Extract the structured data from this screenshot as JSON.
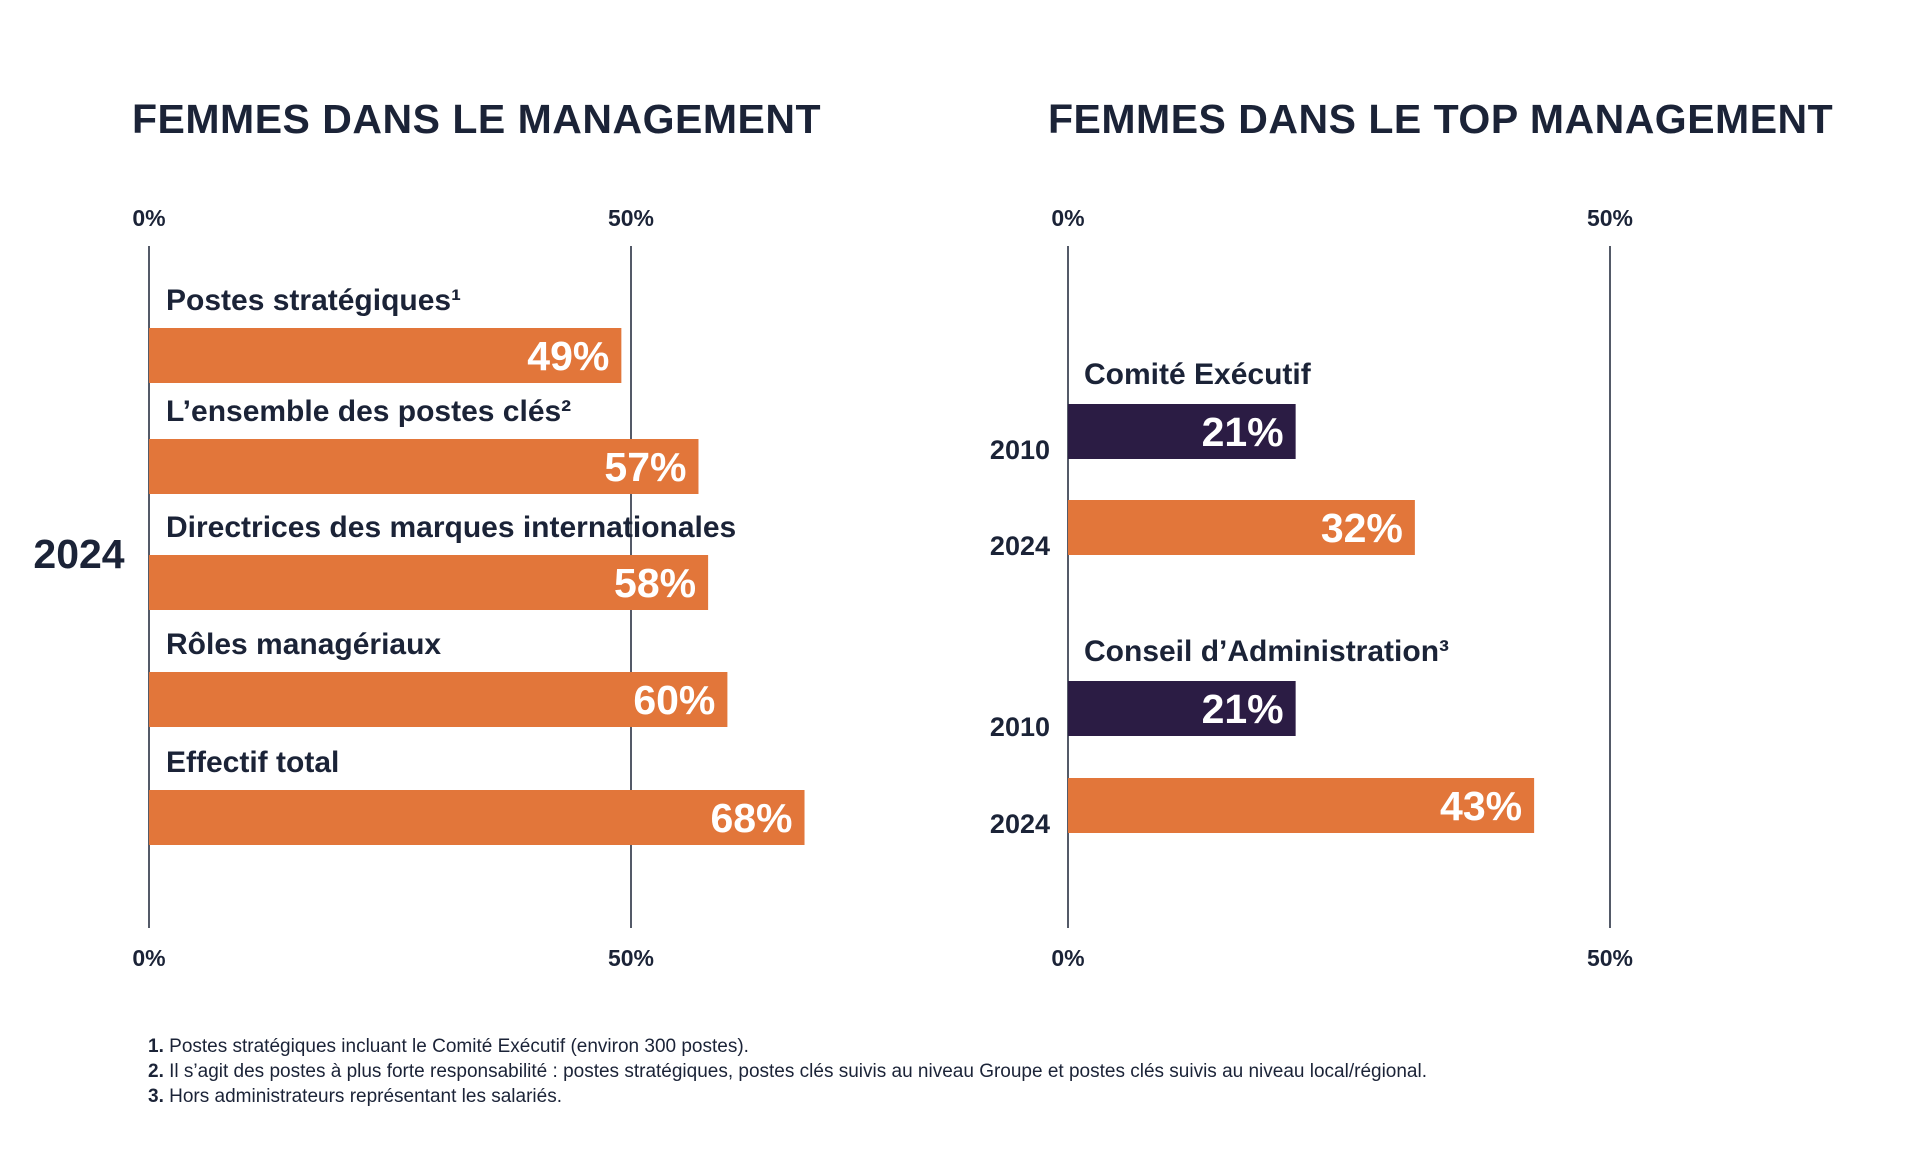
{
  "colors": {
    "orange": "#e2763a",
    "purple": "#2b1c44",
    "text": "#1b2337",
    "axis": "#1b2337"
  },
  "chart_data": [
    {
      "type": "bar",
      "orientation": "horizontal",
      "title": "FEMMES DANS LE MANAGEMENT",
      "group_label": "2024",
      "categories": [
        "Postes stratégiques¹",
        "L’ensemble des postes clés²",
        "Directrices des marques internationales",
        "Rôles managériaux",
        "Effectif total"
      ],
      "values": [
        49,
        57,
        58,
        60,
        68
      ],
      "value_labels": [
        "49%",
        "57%",
        "58%",
        "60%",
        "68%"
      ],
      "xlim": [
        0,
        50
      ],
      "ticks": [
        "0%",
        "50%"
      ],
      "ticks_shown": "top and bottom"
    },
    {
      "type": "bar",
      "orientation": "horizontal",
      "title": "FEMMES DANS LE TOP MANAGEMENT",
      "groups": [
        {
          "name": "Comité Exécutif",
          "bars": [
            {
              "year": "2010",
              "value": 21,
              "label": "21%",
              "color": "purple"
            },
            {
              "year": "2024",
              "value": 32,
              "label": "32%",
              "color": "orange"
            }
          ]
        },
        {
          "name": "Conseil d’Administration³",
          "bars": [
            {
              "year": "2010",
              "value": 21,
              "label": "21%",
              "color": "purple"
            },
            {
              "year": "2024",
              "value": 43,
              "label": "43%",
              "color": "orange"
            }
          ]
        }
      ],
      "xlim": [
        0,
        50
      ],
      "ticks": [
        "0%",
        "50%"
      ],
      "ticks_shown": "top and bottom"
    }
  ],
  "footnotes": [
    {
      "num": "1.",
      "text": "Postes stratégiques incluant le Comité Exécutif (environ 300 postes)."
    },
    {
      "num": "2.",
      "text": "Il s’agit des postes à plus forte responsabilité : postes stratégiques, postes clés suivis au niveau Groupe et postes clés suivis au niveau local/régional."
    },
    {
      "num": "3.",
      "text": "Hors administrateurs représentant les salariés."
    }
  ]
}
